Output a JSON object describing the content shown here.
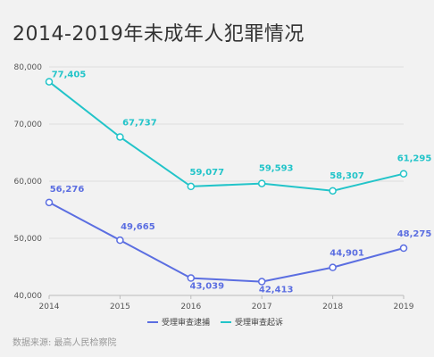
{
  "title": "2014-2019年未成年人犯罪情况",
  "source": "数据来源: 最高人民检察院",
  "chart_data": {
    "type": "line",
    "x": [
      "2014",
      "2015",
      "2016",
      "2017",
      "2018",
      "2019"
    ],
    "y_ticks": [
      "40,000",
      "50,000",
      "60,000",
      "70,000",
      "80,000"
    ],
    "ylim": [
      40000,
      80000
    ],
    "grid": "horizontal",
    "legend_position": "bottom",
    "series": [
      {
        "name": "受理审查逮捕",
        "color": "#5b6ee1",
        "values": [
          56276,
          49665,
          43039,
          42413,
          44901,
          48275
        ],
        "labels": [
          "56,276",
          "49,665",
          "43,039",
          "42,413",
          "44,901",
          "48,275"
        ]
      },
      {
        "name": "受理审查起诉",
        "color": "#22c4c9",
        "values": [
          77405,
          67737,
          59077,
          59593,
          58307,
          61295
        ],
        "labels": [
          "77,405",
          "67,737",
          "59,077",
          "59,593",
          "58,307",
          "61,295"
        ]
      }
    ]
  }
}
